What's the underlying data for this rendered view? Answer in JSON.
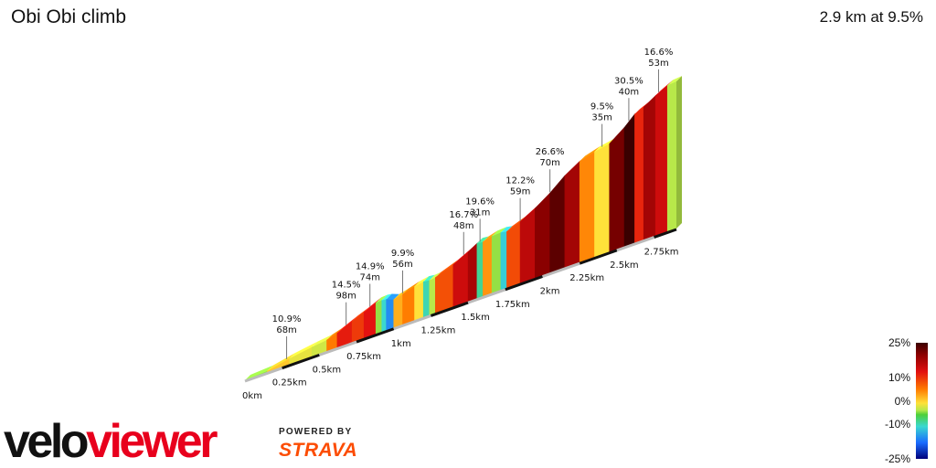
{
  "title": "Obi Obi climb",
  "summary": "2.9 km at 9.5%",
  "brand": {
    "logo_text": "veloviewer",
    "powered_by": "POWERED BY",
    "partner": "STRAVA",
    "colors": {
      "logo": "#111111",
      "logo_accent": "#e8001d",
      "partner": "#fc4c02"
    }
  },
  "legend": {
    "labels": [
      {
        "text": "25%",
        "value": 25
      },
      {
        "text": "10%",
        "value": 10
      },
      {
        "text": "0%",
        "value": 0
      },
      {
        "text": "-10%",
        "value": -10
      },
      {
        "text": "-25%",
        "value": -25
      }
    ]
  },
  "chart_data": {
    "type": "area",
    "x_unit": "km",
    "distance_km": 2.9,
    "average_gradient_pct": 9.5,
    "x_ticks": [
      "0km",
      "0.25km",
      "0.5km",
      "0.75km",
      "1km",
      "1.25km",
      "1.5km",
      "1.75km",
      "2km",
      "2.25km",
      "2.5km",
      "2.75km"
    ],
    "x_tick_values": [
      0,
      0.25,
      0.5,
      0.75,
      1,
      1.25,
      1.5,
      1.75,
      2,
      2.25,
      2.5,
      2.75
    ],
    "annotations": [
      {
        "x_km": 0.28,
        "gradient": "10.9%",
        "length": "68m"
      },
      {
        "x_km": 0.68,
        "gradient": "14.5%",
        "length": "98m"
      },
      {
        "x_km": 0.84,
        "gradient": "14.9%",
        "length": "74m"
      },
      {
        "x_km": 1.06,
        "gradient": "9.9%",
        "length": "56m"
      },
      {
        "x_km": 1.47,
        "gradient": "16.7%",
        "length": "48m"
      },
      {
        "x_km": 1.58,
        "gradient": "19.6%",
        "length": "31m"
      },
      {
        "x_km": 1.85,
        "gradient": "12.2%",
        "length": "59m"
      },
      {
        "x_km": 2.05,
        "gradient": "26.6%",
        "length": "70m"
      },
      {
        "x_km": 2.4,
        "gradient": "9.5%",
        "length": "35m"
      },
      {
        "x_km": 2.58,
        "gradient": "30.5%",
        "length": "40m"
      },
      {
        "x_km": 2.78,
        "gradient": "16.6%",
        "length": "53m"
      }
    ],
    "segments": [
      {
        "start": 0.0,
        "end": 0.15,
        "gradient": 2
      },
      {
        "start": 0.15,
        "end": 0.3,
        "gradient": 7
      },
      {
        "start": 0.3,
        "end": 0.45,
        "gradient": 5
      },
      {
        "start": 0.45,
        "end": 0.55,
        "gradient": 4
      },
      {
        "start": 0.55,
        "end": 0.62,
        "gradient": 10
      },
      {
        "start": 0.62,
        "end": 0.72,
        "gradient": 14.5
      },
      {
        "start": 0.72,
        "end": 0.8,
        "gradient": 13
      },
      {
        "start": 0.8,
        "end": 0.88,
        "gradient": 14.9
      },
      {
        "start": 0.88,
        "end": 0.92,
        "gradient": 2
      },
      {
        "start": 0.92,
        "end": 0.95,
        "gradient": -5
      },
      {
        "start": 0.95,
        "end": 1.0,
        "gradient": -12
      },
      {
        "start": 1.0,
        "end": 1.06,
        "gradient": 8
      },
      {
        "start": 1.06,
        "end": 1.14,
        "gradient": 9.9
      },
      {
        "start": 1.14,
        "end": 1.2,
        "gradient": 6
      },
      {
        "start": 1.2,
        "end": 1.24,
        "gradient": -4
      },
      {
        "start": 1.24,
        "end": 1.28,
        "gradient": 3
      },
      {
        "start": 1.28,
        "end": 1.4,
        "gradient": 12
      },
      {
        "start": 1.4,
        "end": 1.5,
        "gradient": 16.7
      },
      {
        "start": 1.5,
        "end": 1.56,
        "gradient": 19.6
      },
      {
        "start": 1.56,
        "end": 1.6,
        "gradient": -3
      },
      {
        "start": 1.6,
        "end": 1.66,
        "gradient": 9
      },
      {
        "start": 1.66,
        "end": 1.72,
        "gradient": 2
      },
      {
        "start": 1.72,
        "end": 1.76,
        "gradient": -6
      },
      {
        "start": 1.76,
        "end": 1.85,
        "gradient": 12.2
      },
      {
        "start": 1.85,
        "end": 1.95,
        "gradient": 18
      },
      {
        "start": 1.95,
        "end": 2.05,
        "gradient": 22
      },
      {
        "start": 2.05,
        "end": 2.15,
        "gradient": 26.6
      },
      {
        "start": 2.15,
        "end": 2.25,
        "gradient": 20
      },
      {
        "start": 2.25,
        "end": 2.35,
        "gradient": 9.5
      },
      {
        "start": 2.35,
        "end": 2.45,
        "gradient": 6
      },
      {
        "start": 2.45,
        "end": 2.55,
        "gradient": 24
      },
      {
        "start": 2.55,
        "end": 2.62,
        "gradient": 30.5
      },
      {
        "start": 2.62,
        "end": 2.68,
        "gradient": 14
      },
      {
        "start": 2.68,
        "end": 2.76,
        "gradient": 20
      },
      {
        "start": 2.76,
        "end": 2.84,
        "gradient": 16.6
      },
      {
        "start": 2.84,
        "end": 2.9,
        "gradient": 3
      }
    ]
  }
}
